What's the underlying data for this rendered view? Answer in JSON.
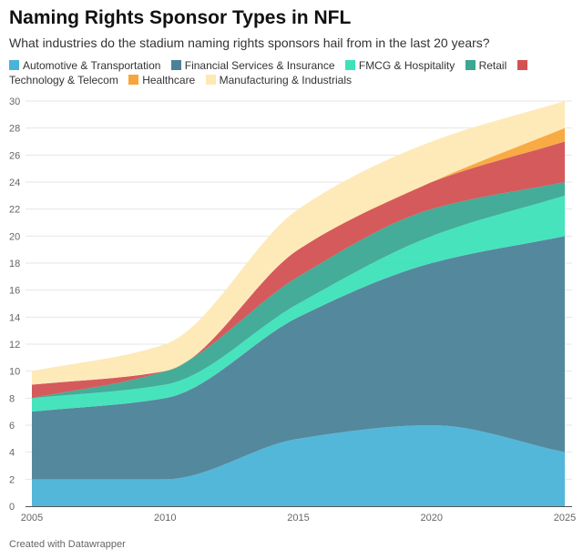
{
  "title": "Naming Rights Sponsor Types in NFL",
  "subtitle": "What industries do the stadium naming rights sponsors hail from in the last 20 years?",
  "credit": "Created with Datawrapper",
  "chart_data": {
    "type": "area",
    "stacked": true,
    "title": "Naming Rights Sponsor Types in NFL",
    "x": [
      2005,
      2010,
      2015,
      2020,
      2025
    ],
    "xticks": [
      "2005",
      "2010",
      "2015",
      "2020",
      "2025"
    ],
    "yticks": [
      "0",
      "2",
      "4",
      "6",
      "8",
      "10",
      "12",
      "14",
      "16",
      "18",
      "20",
      "22",
      "24",
      "26",
      "28",
      "30"
    ],
    "ylim": [
      0,
      30
    ],
    "grid": true,
    "legend_position": "top",
    "series": [
      {
        "name": "Automotive & Transportation",
        "color": "#4ab3d8",
        "values": [
          2,
          2,
          5,
          6,
          4
        ]
      },
      {
        "name": "Financial Services & Insurance",
        "color": "#4b8297",
        "values": [
          5,
          6,
          9,
          12,
          16
        ]
      },
      {
        "name": "FMCG & Hospitality",
        "color": "#3de2b9",
        "values": [
          1,
          1,
          1,
          2,
          3
        ]
      },
      {
        "name": "Retail",
        "color": "#3aa892",
        "values": [
          0,
          1,
          2,
          2,
          1
        ]
      },
      {
        "name": "Technology & Telecom",
        "color": "#d35153",
        "values": [
          1,
          0,
          2,
          2,
          3
        ]
      },
      {
        "name": "Healthcare",
        "color": "#f8a53b",
        "values": [
          0,
          0,
          0,
          0,
          1
        ]
      },
      {
        "name": "Manufacturing & Industrials",
        "color": "#fee9b5",
        "values": [
          1,
          2,
          3,
          3,
          2
        ]
      }
    ]
  }
}
